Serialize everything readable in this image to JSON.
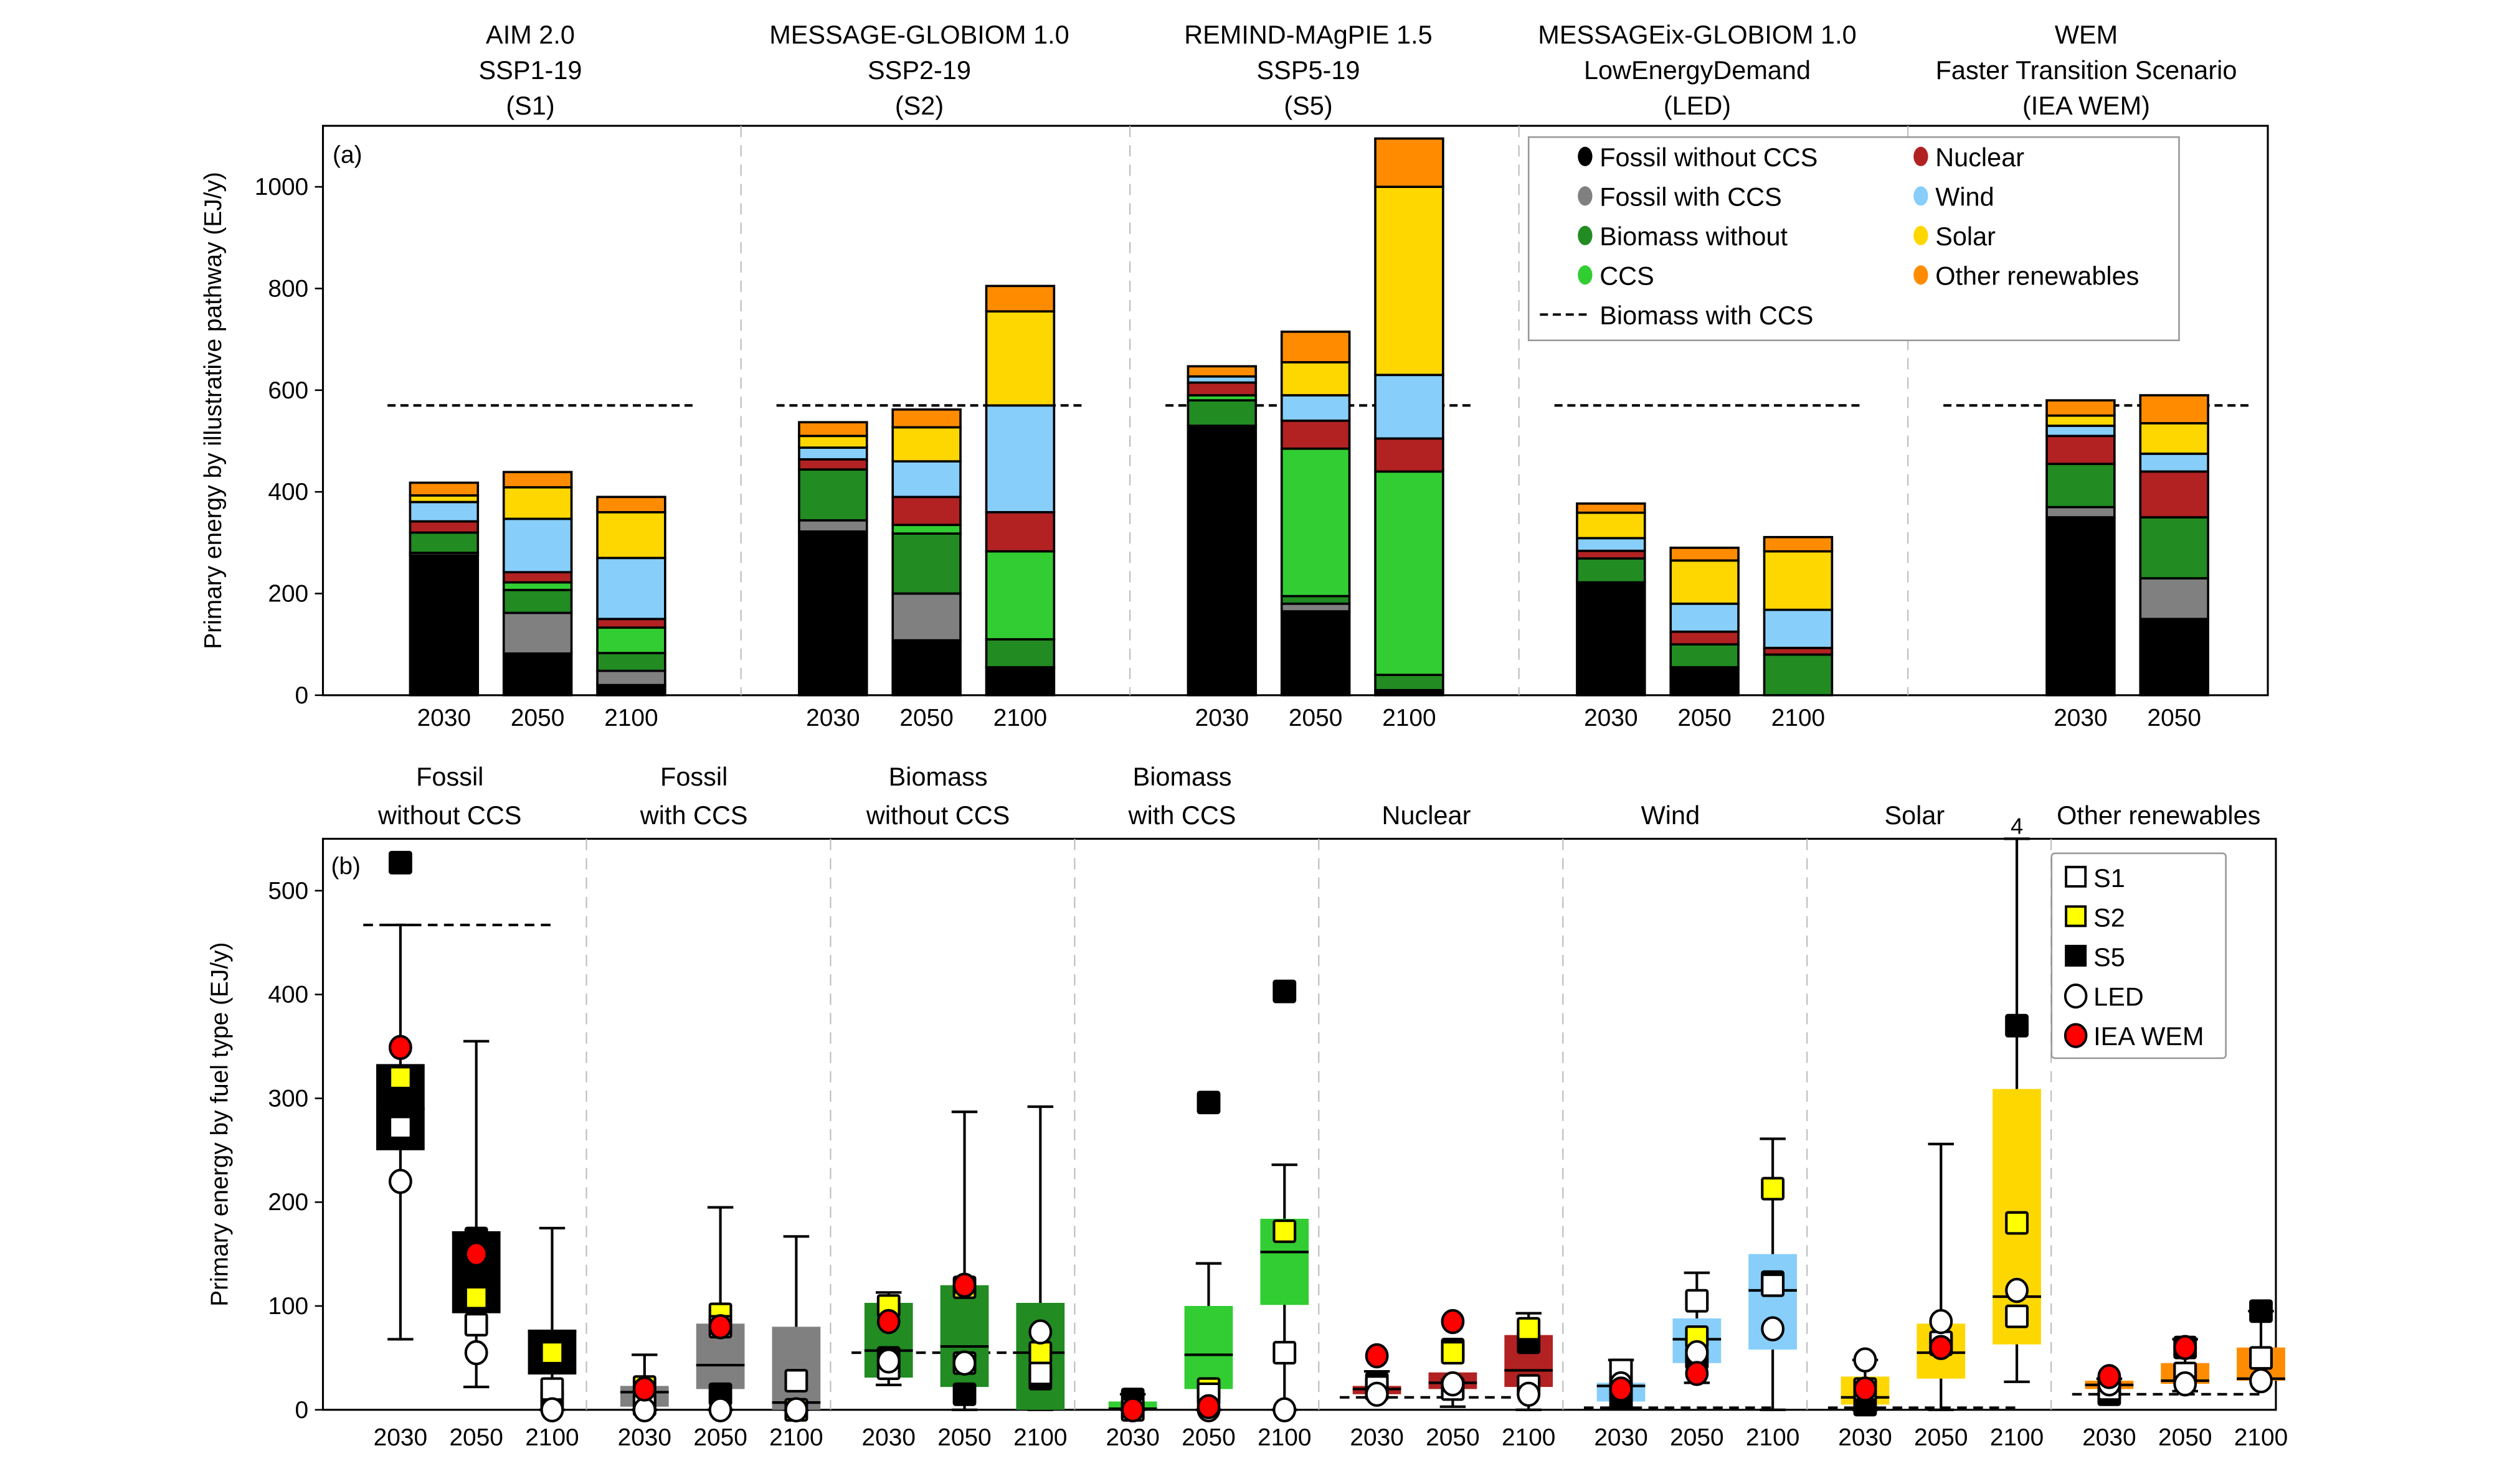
{
  "chart_data": [
    {
      "panel": "(a)",
      "type": "bar",
      "stacked": true,
      "ylabel": "Primary energy by illustrative pathway (EJ/y)",
      "ylim": [
        0,
        1120
      ],
      "yticks": [
        0,
        200,
        400,
        600,
        800,
        1000
      ],
      "biomass_with_ccs_reference": 570,
      "legend_placement": "top-right",
      "legend": [
        {
          "key": "fossil_no_ccs",
          "label": "Fossil without CCS",
          "color": "#000000",
          "marker": "dot"
        },
        {
          "key": "fossil_ccs",
          "label": "Fossil with CCS",
          "color": "#808080",
          "marker": "dot"
        },
        {
          "key": "bio_no_ccs",
          "label": "Biomass without",
          "color": "#228B22",
          "marker": "dot"
        },
        {
          "key": "bio_ccs",
          "label": "CCS",
          "color": "#32CD32",
          "marker": "dot"
        },
        {
          "key": "biomass_with_ccs_line",
          "label": "Biomass with CCS",
          "color": "#000000",
          "marker": "dash"
        },
        {
          "key": "nuclear",
          "label": "Nuclear",
          "color": "#B22222",
          "marker": "dot"
        },
        {
          "key": "wind",
          "label": "Wind",
          "color": "#87CEFA",
          "marker": "dot"
        },
        {
          "key": "solar",
          "label": "Solar",
          "color": "#FFD700",
          "marker": "dot"
        },
        {
          "key": "other",
          "label": "Other renewables",
          "color": "#FF8C00",
          "marker": "dot"
        }
      ],
      "stack_order": [
        "fossil_no_ccs",
        "fossil_ccs",
        "bio_no_ccs",
        "bio_ccs",
        "nuclear",
        "wind",
        "solar",
        "other"
      ],
      "groups": [
        {
          "title": [
            "AIM 2.0",
            "SSP1-19",
            "(S1)"
          ],
          "bars": [
            {
              "year": "2030",
              "values": [
                275,
                5,
                40,
                0,
                22,
                38,
                13,
                25
              ]
            },
            {
              "year": "2050",
              "values": [
                82,
                80,
                45,
                15,
                20,
                105,
                62,
                30
              ]
            },
            {
              "year": "2100",
              "values": [
                20,
                28,
                35,
                50,
                17,
                120,
                90,
                30
              ]
            }
          ]
        },
        {
          "title": [
            "MESSAGE-GLOBIOM 1.0",
            "SSP2-19",
            "(S2)"
          ],
          "bars": [
            {
              "year": "2030",
              "values": [
                322,
                22,
                100,
                0,
                20,
                23,
                23,
                27
              ]
            },
            {
              "year": "2050",
              "values": [
                108,
                92,
                118,
                17,
                55,
                70,
                67,
                35
              ]
            },
            {
              "year": "2100",
              "values": [
                55,
                0,
                55,
                173,
                77,
                210,
                185,
                50
              ]
            }
          ]
        },
        {
          "title": [
            "REMIND-MAgPIE 1.5",
            "SSP5-19",
            "(S5)"
          ],
          "bars": [
            {
              "year": "2030",
              "values": [
                530,
                0,
                50,
                10,
                25,
                12,
                0,
                20
              ]
            },
            {
              "year": "2050",
              "values": [
                165,
                15,
                15,
                290,
                55,
                50,
                65,
                60
              ]
            },
            {
              "year": "2100",
              "values": [
                10,
                0,
                30,
                400,
                65,
                125,
                370,
                95
              ]
            }
          ]
        },
        {
          "title": [
            "MESSAGEix-GLOBIOM 1.0",
            "LowEnergyDemand",
            "(LED)"
          ],
          "bars": [
            {
              "year": "2030",
              "values": [
                222,
                0,
                47,
                0,
                15,
                25,
                50,
                18
              ]
            },
            {
              "year": "2050",
              "values": [
                55,
                0,
                45,
                0,
                25,
                55,
                85,
                25
              ]
            },
            {
              "year": "2100",
              "values": [
                0,
                0,
                80,
                0,
                13,
                75,
                115,
                28
              ]
            }
          ]
        },
        {
          "title": [
            "WEM",
            "Faster Transition Scenario",
            "(IEA WEM)"
          ],
          "bars": [
            {
              "year": "2030",
              "values": [
                350,
                20,
                85,
                0,
                55,
                20,
                20,
                30
              ]
            },
            {
              "year": "2050",
              "values": [
                150,
                80,
                120,
                0,
                90,
                35,
                60,
                55
              ]
            }
          ]
        }
      ]
    },
    {
      "panel": "(b)",
      "type": "box",
      "ylabel": "Primary energy by fuel type (EJ/y)",
      "ylim": [
        0,
        550
      ],
      "yticks": [
        0,
        100,
        200,
        300,
        400,
        500
      ],
      "legend_placement": "top-right",
      "marker_legend": [
        {
          "key": "S1",
          "label": "S1",
          "shape": "square",
          "fill": "#FFFFFF"
        },
        {
          "key": "S2",
          "label": "S2",
          "shape": "square",
          "fill": "#FFFF00"
        },
        {
          "key": "S5",
          "label": "S5",
          "shape": "square",
          "fill": "#000000"
        },
        {
          "key": "LED",
          "label": "LED",
          "shape": "circle",
          "fill": "#FFFFFF"
        },
        {
          "key": "WEM",
          "label": "IEA WEM",
          "shape": "circle",
          "fill": "#FF0000"
        }
      ],
      "off_scale_annotation": "4",
      "categories": [
        {
          "title": [
            "Fossil",
            "without CCS"
          ],
          "color": "#000000",
          "reference": 467,
          "boxes": [
            {
              "year": "2030",
              "whisker": [
                68,
                467
              ],
              "q": [
                250,
                333
              ],
              "median": 290,
              "S1": 272,
              "S2": 320,
              "S5": 527,
              "LED": 220,
              "WEM": 349
            },
            {
              "year": "2050",
              "whisker": [
                22,
                355
              ],
              "q": [
                93,
                172
              ],
              "median": 170,
              "S1": 82,
              "S2": 108,
              "S5": 165,
              "LED": 55,
              "WEM": 150
            },
            {
              "year": "2100",
              "whisker": [
                0,
                175
              ],
              "q": [
                34,
                76
              ],
              "median": 76,
              "S1": 20,
              "S2": 55,
              "S5": 10,
              "LED": 0,
              "WEM": null
            }
          ]
        },
        {
          "title": [
            "Fossil",
            "with CCS"
          ],
          "color": "#808080",
          "reference": null,
          "boxes": [
            {
              "year": "2030",
              "whisker": [
                0,
                53
              ],
              "q": [
                3,
                23
              ],
              "median": 17,
              "S1": 5,
              "S2": 22,
              "S5": 5,
              "LED": 0,
              "WEM": 20
            },
            {
              "year": "2050",
              "whisker": [
                0,
                195
              ],
              "q": [
                20,
                83
              ],
              "median": 43,
              "S1": 80,
              "S2": 92,
              "S5": 15,
              "LED": 0,
              "WEM": 80
            },
            {
              "year": "2100",
              "whisker": [
                0,
                167
              ],
              "q": [
                0,
                80
              ],
              "median": 7,
              "S1": 28,
              "S2": 0,
              "S5": 0,
              "LED": 0,
              "WEM": null
            }
          ]
        },
        {
          "title": [
            "Biomass",
            "without CCS"
          ],
          "color": "#228B22",
          "reference": 55,
          "boxes": [
            {
              "year": "2030",
              "whisker": [
                24,
                113
              ],
              "q": [
                31,
                103
              ],
              "median": 57,
              "S1": 40,
              "S2": 100,
              "S5": 50,
              "LED": 47,
              "WEM": 85
            },
            {
              "year": "2050",
              "whisker": [
                0,
                287
              ],
              "q": [
                22,
                120
              ],
              "median": 61,
              "S1": 45,
              "S2": 118,
              "S5": 15,
              "LED": 45,
              "WEM": 120
            },
            {
              "year": "2100",
              "whisker": [
                0,
                292
              ],
              "q": [
                0,
                103
              ],
              "median": 55,
              "S1": 35,
              "S2": 55,
              "S5": 30,
              "LED": 75,
              "WEM": null
            }
          ]
        },
        {
          "title": [
            "Biomass",
            "with CCS"
          ],
          "color": "#32CD32",
          "reference": null,
          "boxes": [
            {
              "year": "2030",
              "whisker": [
                0,
                15
              ],
              "q": [
                0,
                8
              ],
              "median": 1,
              "S1": 0,
              "S2": 0,
              "S5": 10,
              "LED": 0,
              "WEM": 0
            },
            {
              "year": "2050",
              "whisker": [
                0,
                141
              ],
              "q": [
                20,
                100
              ],
              "median": 53,
              "S1": 15,
              "S2": 20,
              "S5": 296,
              "LED": 0,
              "WEM": 3
            },
            {
              "year": "2100",
              "whisker": [
                0,
                236
              ],
              "q": [
                101,
                184
              ],
              "median": 152,
              "S1": 55,
              "S2": 172,
              "S5": 403,
              "LED": 0,
              "WEM": null
            }
          ]
        },
        {
          "title": [
            "Nuclear"
          ],
          "color": "#B22222",
          "reference": 12,
          "boxes": [
            {
              "year": "2030",
              "whisker": [
                12,
                37
              ],
              "q": [
                15,
                23
              ],
              "median": 20,
              "S1": 22,
              "S2": 20,
              "S5": 25,
              "LED": 15,
              "WEM": 52
            },
            {
              "year": "2050",
              "whisker": [
                3,
                33
              ],
              "q": [
                20,
                36
              ],
              "median": 26,
              "S1": 20,
              "S2": 55,
              "S5": 58,
              "LED": 25,
              "WEM": 85
            },
            {
              "year": "2100",
              "whisker": [
                0,
                93
              ],
              "q": [
                22,
                72
              ],
              "median": 38,
              "S1": 23,
              "S2": 78,
              "S5": 65,
              "LED": 15,
              "WEM": null
            }
          ]
        },
        {
          "title": [
            "Wind"
          ],
          "color": "#87CEFA",
          "reference": 2,
          "boxes": [
            {
              "year": "2030",
              "whisker": [
                2,
                48
              ],
              "q": [
                8,
                26
              ],
              "median": 23,
              "S1": 38,
              "S2": 23,
              "S5": 12,
              "LED": 25,
              "WEM": 20
            },
            {
              "year": "2050",
              "whisker": [
                26,
                132
              ],
              "q": [
                45,
                88
              ],
              "median": 68,
              "S1": 105,
              "S2": 70,
              "S5": 50,
              "LED": 55,
              "WEM": 35
            },
            {
              "year": "2100",
              "whisker": [
                0,
                261
              ],
              "q": [
                58,
                150
              ],
              "median": 115,
              "S1": 120,
              "S2": 213,
              "S5": 123,
              "LED": 78,
              "WEM": null
            }
          ]
        },
        {
          "title": [
            "Solar"
          ],
          "color": "#FFD700",
          "reference": 2,
          "boxes": [
            {
              "year": "2030",
              "whisker": [
                0,
                48
              ],
              "q": [
                5,
                32
              ],
              "median": 12,
              "S1": 20,
              "S2": 20,
              "S5": 5,
              "LED": 48,
              "WEM": 20
            },
            {
              "year": "2050",
              "whisker": [
                0,
                256
              ],
              "q": [
                30,
                83
              ],
              "median": 55,
              "S1": 65,
              "S2": 65,
              "S5": 63,
              "LED": 85,
              "WEM": 60
            },
            {
              "year": "2100",
              "whisker": [
                27,
                550
              ],
              "q": [
                63,
                309
              ],
              "median": 109,
              "S1": 90,
              "S2": 180,
              "S5": 370,
              "LED": 115,
              "WEM": null
            }
          ]
        },
        {
          "title": [
            "Other renewables"
          ],
          "color": "#FF8C00",
          "reference": 15,
          "boxes": [
            {
              "year": "2030",
              "whisker": [
                15,
                30
              ],
              "q": [
                20,
                28
              ],
              "median": 24,
              "S1": 20,
              "S2": 20,
              "S5": 15,
              "LED": 25,
              "WEM": 32
            },
            {
              "year": "2050",
              "whisker": [
                18,
                68
              ],
              "q": [
                25,
                45
              ],
              "median": 28,
              "S1": 35,
              "S2": 35,
              "S5": 60,
              "LED": 25,
              "WEM": 60
            },
            {
              "year": "2100",
              "whisker": [
                30,
                95
              ],
              "q": [
                28,
                60
              ],
              "median": 30,
              "S1": 50,
              "S2": 50,
              "S5": 95,
              "LED": 28,
              "WEM": null
            }
          ]
        }
      ]
    }
  ],
  "footnote": "."
}
